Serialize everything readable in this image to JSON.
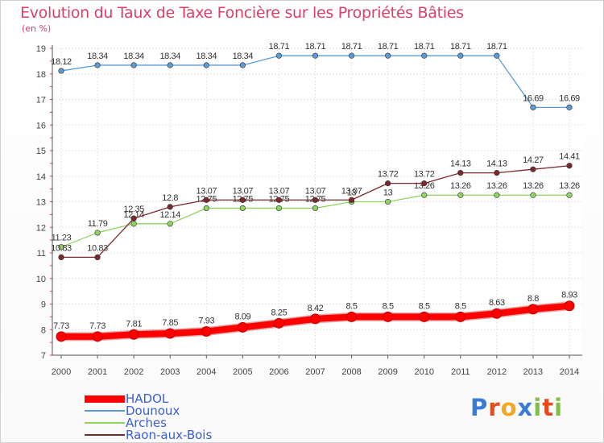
{
  "header": {
    "title": "Evolution du Taux de Taxe Foncière sur les Propriétés Bâties",
    "unit": "(en %)"
  },
  "chart_data": {
    "type": "line",
    "x": [
      2000,
      2001,
      2002,
      2003,
      2004,
      2005,
      2006,
      2007,
      2008,
      2009,
      2010,
      2011,
      2012,
      2013,
      2014
    ],
    "ylim": [
      7,
      19
    ],
    "yticks": [
      7,
      8,
      9,
      10,
      11,
      12,
      13,
      14,
      15,
      16,
      17,
      18,
      19
    ],
    "grid": true,
    "legend_position": "bottom-left",
    "series": [
      {
        "name": "HADOL",
        "color": "#ff0000",
        "values": [
          7.73,
          7.73,
          7.81,
          7.85,
          7.93,
          8.09,
          8.25,
          8.42,
          8.5,
          8.5,
          8.5,
          8.5,
          8.63,
          8.8,
          8.93
        ],
        "labels": [
          "7.73",
          "7.73",
          "7.81",
          "7.85",
          "7.93",
          "8.09",
          "8.25",
          "8.42",
          "8.5",
          "8.5",
          "8.5",
          "8.5",
          "8.63",
          "8.8",
          "8.93"
        ]
      },
      {
        "name": "Dounoux",
        "color": "#5b9bd5",
        "values": [
          18.12,
          18.34,
          18.34,
          18.34,
          18.34,
          18.34,
          18.71,
          18.71,
          18.71,
          18.71,
          18.71,
          18.71,
          18.71,
          16.69,
          16.69
        ],
        "labels": [
          "18.12",
          "18.34",
          "18.34",
          "18.34",
          "18.34",
          "18.34",
          "18.71",
          "18.71",
          "18.71",
          "18.71",
          "18.71",
          "18.71",
          "18.71",
          "16.69",
          "16.69"
        ]
      },
      {
        "name": "Arches",
        "color": "#8ed460",
        "values": [
          11.23,
          11.79,
          12.14,
          12.14,
          12.75,
          12.75,
          12.75,
          12.75,
          13,
          13,
          13.26,
          13.26,
          13.26,
          13.26,
          13.26
        ],
        "labels": [
          "11.23",
          "11.79",
          "12.14",
          "12.14",
          "12.75",
          "12.75",
          "12.75",
          "12.75",
          "13",
          "13",
          "13.26",
          "13.26",
          "13.26",
          "13.26",
          "13.26"
        ]
      },
      {
        "name": "Raon-aux-Bois",
        "color": "#7a2a2a",
        "values": [
          10.83,
          10.83,
          12.35,
          12.8,
          13.07,
          13.07,
          13.07,
          13.07,
          13.07,
          13.72,
          13.72,
          14.13,
          14.13,
          14.27,
          14.41
        ],
        "labels": [
          "10.83",
          "10.83",
          "12.35",
          "12.8",
          "13.07",
          "13.07",
          "13.07",
          "13.07",
          "13.07",
          "13.72",
          "13.72",
          "14.13",
          "14.13",
          "14.27",
          "14.41"
        ]
      }
    ]
  },
  "logo": {
    "text": "Proxiti",
    "letters": [
      "P",
      "r",
      "o",
      "x",
      "i",
      "t",
      "i"
    ],
    "colors": [
      "#3a7bd5",
      "#e64a19",
      "#f5a623",
      "#3a7bd5",
      "#7cc242",
      "#e64a19",
      "#7cc242"
    ]
  }
}
